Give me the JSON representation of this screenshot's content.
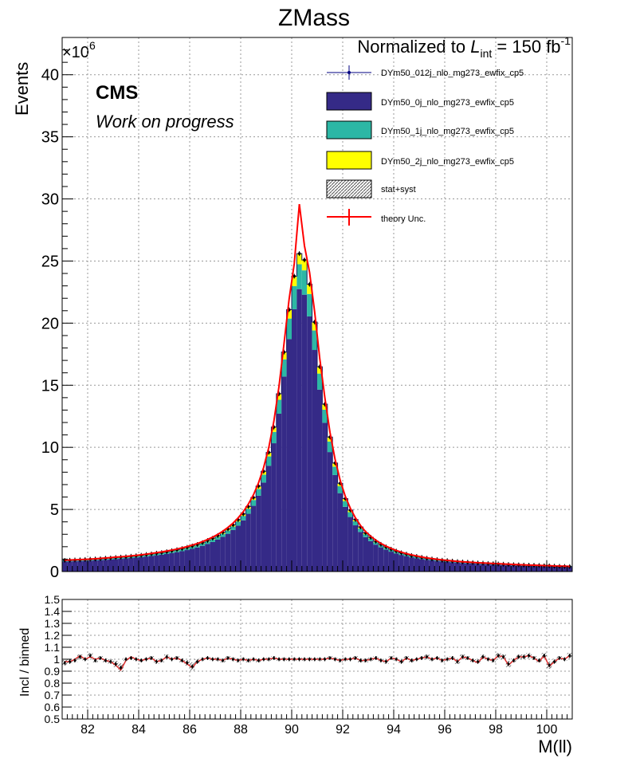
{
  "chart_data": [
    {
      "type": "bar",
      "title": "ZMass",
      "subtitle": "Normalized to L_int = 150 fb^-1",
      "subtitle_parts": {
        "lead": "Normalized to ",
        "L": "L",
        "sub": "int",
        "mid": " = 150 fb",
        "sup": "-1"
      },
      "ylabel": "Events",
      "xlabel": "M(ll)",
      "y_exponent": "×10",
      "y_exponent_power": "6",
      "ylim": [
        0,
        43
      ],
      "xlim": [
        81,
        101
      ],
      "x_ticks": [
        "82",
        "84",
        "86",
        "88",
        "90",
        "92",
        "94",
        "96",
        "98",
        "100"
      ],
      "y_ticks": [
        "0",
        "5",
        "10",
        "15",
        "20",
        "25",
        "30",
        "35",
        "40"
      ],
      "cms_label": "CMS",
      "cms_sublabel": "Work on progress",
      "grid": true,
      "legend_position": "top-right",
      "legend": [
        {
          "label": "DYm50_012j_nlo_mg273_ewfix_cp5",
          "style": "marker",
          "color": "#000080"
        },
        {
          "label": "DYm50_0j_nlo_mg273_ewfix_cp5",
          "style": "fill",
          "color": "#352a87"
        },
        {
          "label": "DYm50_1j_nlo_mg273_ewfix_cp5",
          "style": "fill",
          "color": "#2cb7a5"
        },
        {
          "label": "DYm50_2j_nlo_mg273_ewfix_cp5",
          "style": "fill",
          "color": "#ffff00"
        },
        {
          "label": "stat+syst",
          "style": "hatch",
          "color": "#555555"
        },
        {
          "label": "theory Unc.",
          "style": "line",
          "color": "#ff0000"
        }
      ],
      "bin_width": 0.2,
      "x_start": 81.0,
      "stack_0j": [
        0.8,
        0.81,
        0.83,
        0.84,
        0.86,
        0.88,
        0.9,
        0.92,
        0.95,
        0.97,
        1.0,
        1.03,
        1.06,
        1.09,
        1.13,
        1.17,
        1.21,
        1.26,
        1.31,
        1.36,
        1.42,
        1.49,
        1.56,
        1.64,
        1.73,
        1.83,
        1.94,
        2.07,
        2.22,
        2.38,
        2.57,
        2.79,
        3.04,
        3.34,
        3.7,
        4.12,
        4.65,
        5.29,
        6.11,
        7.17,
        8.52,
        10.33,
        12.71,
        15.7,
        18.72,
        21.12,
        22.74,
        22.29,
        20.54,
        17.84,
        14.65,
        11.98,
        9.62,
        7.77,
        6.31,
        5.21,
        4.39,
        3.72,
        3.19,
        2.77,
        2.45,
        2.17,
        1.95,
        1.76,
        1.6,
        1.46,
        1.34,
        1.24,
        1.15,
        1.08,
        1.01,
        0.95,
        0.9,
        0.85,
        0.81,
        0.78,
        0.74,
        0.71,
        0.68,
        0.66,
        0.64,
        0.62,
        0.6,
        0.58,
        0.56,
        0.54,
        0.52,
        0.51,
        0.49,
        0.48,
        0.46,
        0.45,
        0.44,
        0.43,
        0.41,
        0.4,
        0.39,
        0.38,
        0.37,
        0.36
      ],
      "stack_1j": [
        0.07,
        0.07,
        0.07,
        0.07,
        0.08,
        0.08,
        0.08,
        0.08,
        0.08,
        0.08,
        0.09,
        0.09,
        0.09,
        0.1,
        0.1,
        0.1,
        0.11,
        0.11,
        0.12,
        0.12,
        0.13,
        0.13,
        0.14,
        0.15,
        0.15,
        0.16,
        0.17,
        0.18,
        0.2,
        0.21,
        0.23,
        0.25,
        0.27,
        0.29,
        0.33,
        0.36,
        0.41,
        0.47,
        0.54,
        0.63,
        0.75,
        0.91,
        1.12,
        1.38,
        1.65,
        1.86,
        2.0,
        1.96,
        1.81,
        1.57,
        1.29,
        1.05,
        0.85,
        0.68,
        0.56,
        0.46,
        0.39,
        0.33,
        0.28,
        0.24,
        0.22,
        0.19,
        0.17,
        0.15,
        0.14,
        0.13,
        0.12,
        0.11,
        0.1,
        0.1,
        0.09,
        0.08,
        0.08,
        0.08,
        0.07,
        0.07,
        0.07,
        0.06,
        0.06,
        0.06,
        0.06,
        0.05,
        0.05,
        0.05,
        0.05,
        0.05,
        0.05,
        0.04,
        0.04,
        0.04,
        0.04,
        0.04,
        0.04,
        0.04,
        0.04,
        0.04,
        0.03,
        0.03,
        0.03,
        0.03
      ],
      "stack_2j": [
        0.03,
        0.03,
        0.03,
        0.03,
        0.03,
        0.03,
        0.03,
        0.03,
        0.04,
        0.04,
        0.04,
        0.04,
        0.04,
        0.04,
        0.04,
        0.04,
        0.05,
        0.05,
        0.05,
        0.05,
        0.05,
        0.06,
        0.06,
        0.06,
        0.07,
        0.07,
        0.07,
        0.08,
        0.08,
        0.09,
        0.1,
        0.11,
        0.12,
        0.13,
        0.14,
        0.16,
        0.18,
        0.2,
        0.23,
        0.27,
        0.32,
        0.39,
        0.48,
        0.59,
        0.71,
        0.8,
        0.86,
        0.84,
        0.78,
        0.68,
        0.55,
        0.45,
        0.36,
        0.29,
        0.24,
        0.2,
        0.17,
        0.14,
        0.12,
        0.1,
        0.09,
        0.08,
        0.07,
        0.07,
        0.06,
        0.06,
        0.05,
        0.05,
        0.04,
        0.04,
        0.04,
        0.04,
        0.03,
        0.03,
        0.03,
        0.03,
        0.03,
        0.03,
        0.03,
        0.03,
        0.02,
        0.02,
        0.02,
        0.02,
        0.02,
        0.02,
        0.02,
        0.02,
        0.02,
        0.02,
        0.02,
        0.02,
        0.02,
        0.02,
        0.02,
        0.02,
        0.01,
        0.01,
        0.01,
        0.01
      ],
      "theory_unc_curve": [
        0.92,
        0.93,
        0.95,
        0.96,
        0.98,
        1.0,
        1.03,
        1.06,
        1.09,
        1.12,
        1.16,
        1.19,
        1.22,
        1.26,
        1.3,
        1.35,
        1.4,
        1.46,
        1.52,
        1.58,
        1.65,
        1.73,
        1.81,
        1.91,
        2.01,
        2.13,
        2.26,
        2.41,
        2.58,
        2.77,
        2.99,
        3.25,
        3.55,
        3.9,
        4.32,
        4.81,
        5.43,
        6.18,
        7.14,
        8.38,
        9.97,
        12.09,
        14.87,
        18.37,
        21.95,
        24.78,
        29.58,
        26.23,
        24.1,
        20.91,
        17.15,
        14.0,
        11.22,
        9.04,
        7.35,
        6.06,
        5.09,
        4.32,
        3.7,
        3.21,
        2.84,
        2.52,
        2.26,
        2.04,
        1.86,
        1.7,
        1.56,
        1.44,
        1.34,
        1.25,
        1.17,
        1.1,
        1.04,
        0.99,
        0.94,
        0.9,
        0.86,
        0.82,
        0.79,
        0.76,
        0.74,
        0.71,
        0.69,
        0.67,
        0.65,
        0.63,
        0.61,
        0.59,
        0.57,
        0.55,
        0.54,
        0.52,
        0.51,
        0.5,
        0.48,
        0.47,
        0.45,
        0.44,
        0.43,
        0.42
      ]
    },
    {
      "type": "line",
      "ylabel": "Incl / binned",
      "xlabel": "M(ll)",
      "ylim": [
        0.5,
        1.5
      ],
      "xlim": [
        81,
        101
      ],
      "x_ticks": [
        "82",
        "84",
        "86",
        "88",
        "90",
        "92",
        "94",
        "96",
        "98",
        "100"
      ],
      "y_ticks": [
        "0.5",
        "0.6",
        "0.7",
        "0.8",
        "0.9",
        "1",
        "1.1",
        "1.2",
        "1.3",
        "1.4",
        "1.5"
      ],
      "grid": true,
      "ratio_data": [
        0.97,
        0.98,
        0.99,
        1.02,
        1.0,
        1.03,
        0.99,
        1.01,
        0.99,
        0.98,
        0.96,
        0.93,
        1.0,
        1.01,
        1.0,
        0.99,
        1.0,
        1.01,
        0.98,
        0.99,
        1.02,
        1.0,
        1.01,
        0.99,
        0.97,
        0.94,
        0.98,
        1.0,
        1.01,
        1.0,
        1.0,
        0.99,
        1.01,
        1.0,
        0.99,
        1.0,
        0.99,
        1.0,
        0.99,
        1.0,
        1.0,
        1.01,
        1.0,
        1.0,
        1.0,
        1.0,
        1.0,
        1.0,
        1.0,
        1.0,
        1.0,
        1.0,
        1.01,
        1.0,
        0.99,
        1.0,
        1.0,
        1.01,
        0.99,
        0.99,
        1.0,
        1.01,
        0.99,
        0.98,
        1.01,
        1.0,
        0.98,
        1.01,
        0.99,
        1.0,
        1.01,
        1.02,
        1.0,
        1.01,
        0.99,
        1.0,
        1.01,
        0.98,
        1.02,
        1.01,
        0.99,
        0.98,
        1.02,
        1.0,
        0.99,
        1.03,
        1.02,
        0.96,
        0.99,
        1.02,
        1.02,
        1.03,
        1.01,
        0.99,
        1.03,
        0.95,
        0.98,
        1.01,
        1.0,
        1.03
      ],
      "theory_ratio": [
        0.98,
        0.98,
        1.0,
        1.03,
        1.0,
        1.02,
        1.0,
        1.01,
        0.99,
        0.98,
        0.95,
        0.91,
        0.99,
        1.02,
        1.0,
        0.99,
        1.0,
        1.01,
        0.98,
        0.99,
        1.02,
        1.0,
        1.01,
        0.99,
        0.96,
        0.93,
        0.98,
        1.0,
        1.01,
        1.0,
        1.0,
        0.99,
        1.01,
        1.0,
        0.99,
        1.0,
        0.99,
        1.0,
        0.99,
        1.0,
        1.0,
        1.01,
        1.0,
        1.0,
        1.0,
        1.0,
        1.0,
        1.0,
        1.0,
        1.0,
        1.0,
        1.0,
        1.01,
        1.0,
        0.99,
        1.0,
        1.0,
        1.01,
        0.99,
        0.99,
        1.0,
        1.01,
        0.99,
        0.98,
        1.01,
        1.0,
        0.98,
        1.01,
        0.99,
        1.0,
        1.01,
        1.02,
        1.0,
        1.01,
        0.99,
        1.0,
        1.01,
        0.98,
        1.02,
        1.01,
        0.99,
        0.97,
        1.02,
        1.0,
        0.99,
        1.03,
        1.02,
        0.95,
        0.99,
        1.02,
        1.02,
        1.03,
        1.01,
        0.98,
        1.03,
        0.94,
        0.98,
        1.01,
        1.0,
        1.03
      ]
    }
  ]
}
